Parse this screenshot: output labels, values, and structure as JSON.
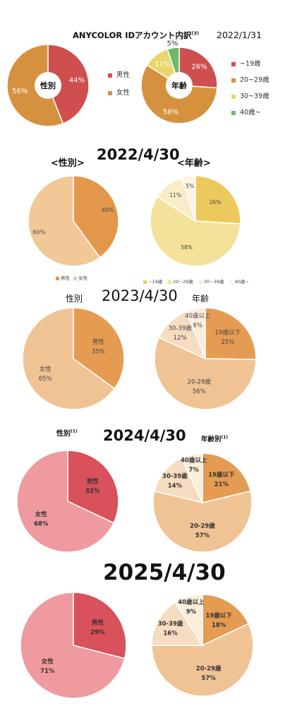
{
  "header": {
    "title": "ANYCOLOR IDアカウント内訳",
    "title_sup": "(3)",
    "date": "2022/1/31"
  },
  "section_2022_04": {
    "date": "2022/4/30",
    "gender_label": "<性別>",
    "age_label": "<年齢>"
  },
  "section_2023": {
    "date": "2023/4/30",
    "gender_label": "性別",
    "age_label": "年齢"
  },
  "section_2024": {
    "date": "2024/4/30",
    "gender_label": "性別",
    "gender_sup": "(1)",
    "age_label": "年齢別",
    "age_sup": "(1)"
  },
  "section_2025": {
    "date": "2025/4/30"
  },
  "legend_2022_01": {
    "gender": [
      "男性",
      "女性"
    ],
    "age": [
      "~19歳",
      "20~29歳",
      "30~39歳",
      "40歳~"
    ]
  },
  "legend_2022_04": {
    "gender": [
      "男性",
      "女性"
    ],
    "age": [
      "~19歳",
      "20~29歳",
      "30~39歳",
      "40歳~"
    ]
  },
  "colors": {
    "g22_male": "#cf4f4f",
    "g22_female": "#d6913f",
    "a22_u19": "#cf4f4f",
    "a22_20s": "#d6913f",
    "a22_30s": "#e8d66a",
    "a22_40": "#6fb86b",
    "g2204_male": "#e2974a",
    "g2204_female": "#f1c896",
    "a2204_u19": "#ecc95d",
    "a2204_20s": "#f5e29a",
    "a2204_30s": "#f8edc6",
    "a2204_40": "#fbf5e1",
    "g23_male": "#e59b52",
    "g23_female": "#f0c395",
    "a23_u19": "#e59b52",
    "a23_20s": "#f0c395",
    "a23_30s": "#f6dcc0",
    "a23_40": "#fbeddc",
    "g24_male": "#d9515a",
    "g24_female": "#ee9a9f",
    "a24_u19": "#e59b52",
    "a24_20s": "#f0c395",
    "a24_30s": "#f6dcc0",
    "a24_40": "#fbeddc"
  },
  "chart_data": [
    {
      "type": "pie",
      "date": "2022/1/31",
      "center_label": "性別",
      "series": [
        {
          "values": [
            44,
            56
          ],
          "labels": [
            "44%",
            "56%"
          ],
          "categories": [
            "男性",
            "女性"
          ]
        }
      ]
    },
    {
      "type": "pie",
      "date": "2022/1/31",
      "center_label": "年齢",
      "series": [
        {
          "values": [
            26,
            58,
            11,
            5
          ],
          "labels": [
            "26%",
            "58%",
            "11%",
            "5%"
          ],
          "categories": [
            "~19歳",
            "20~29歳",
            "30~39歳",
            "40歳~"
          ]
        }
      ]
    },
    {
      "type": "pie",
      "date": "2022/4/30",
      "series": [
        {
          "values": [
            40,
            60
          ],
          "labels": [
            "40%",
            "60%"
          ],
          "categories": [
            "男性",
            "女性"
          ]
        }
      ]
    },
    {
      "type": "pie",
      "date": "2022/4/30",
      "series": [
        {
          "values": [
            26,
            58,
            11,
            5
          ],
          "labels": [
            "26%",
            "58%",
            "11%",
            "5%"
          ],
          "categories": [
            "~19歳",
            "20~29歳",
            "30~39歳",
            "40歳~"
          ]
        }
      ]
    },
    {
      "type": "pie",
      "date": "2023/4/30",
      "series": [
        {
          "values": [
            35,
            65
          ],
          "labels": [
            "35%",
            "65%"
          ],
          "categories": [
            "男性",
            "女性"
          ]
        }
      ]
    },
    {
      "type": "pie",
      "date": "2023/4/30",
      "series": [
        {
          "values": [
            25,
            56,
            12,
            6
          ],
          "labels": [
            "25%",
            "56%",
            "12%",
            "6%"
          ],
          "categories": [
            "19歳以下",
            "20-29歳",
            "30-39歳",
            "40歳以上"
          ]
        }
      ]
    },
    {
      "type": "pie",
      "date": "2024/4/30",
      "series": [
        {
          "values": [
            32,
            68
          ],
          "labels": [
            "32%",
            "68%"
          ],
          "categories": [
            "男性",
            "女性"
          ]
        }
      ]
    },
    {
      "type": "pie",
      "date": "2024/4/30",
      "series": [
        {
          "values": [
            21,
            57,
            14,
            7
          ],
          "labels": [
            "21%",
            "57%",
            "14%",
            "7%"
          ],
          "categories": [
            "19歳以下",
            "20-29歳",
            "30-39歳",
            "40歳以上"
          ]
        }
      ]
    },
    {
      "type": "pie",
      "date": "2025/4/30",
      "series": [
        {
          "values": [
            29,
            71
          ],
          "labels": [
            "29%",
            "71%"
          ],
          "categories": [
            "男性",
            "女性"
          ]
        }
      ]
    },
    {
      "type": "pie",
      "date": "2025/4/30",
      "series": [
        {
          "values": [
            18,
            57,
            16,
            9
          ],
          "labels": [
            "18%",
            "57%",
            "16%",
            "9%"
          ],
          "categories": [
            "19歳以下",
            "20-29歳",
            "30-39歳",
            "40歳以上"
          ]
        }
      ]
    }
  ]
}
